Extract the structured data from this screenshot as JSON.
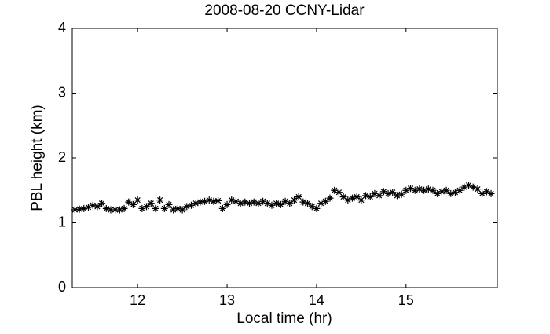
{
  "chart_data": {
    "type": "scatter",
    "title": "2008-08-20 CCNY-Lidar",
    "x_label": "Local time (hr)",
    "y_label": "PBL height (km)",
    "color": "#000000",
    "marker": "asterisk",
    "x": [
      11.3,
      11.35,
      11.4,
      11.45,
      11.5,
      11.55,
      11.6,
      11.65,
      11.7,
      11.75,
      11.8,
      11.85,
      11.9,
      11.95,
      12.0,
      12.05,
      12.1,
      12.15,
      12.2,
      12.25,
      12.3,
      12.35,
      12.4,
      12.45,
      12.5,
      12.55,
      12.6,
      12.65,
      12.7,
      12.75,
      12.8,
      12.85,
      12.9,
      12.95,
      13.0,
      13.05,
      13.1,
      13.15,
      13.2,
      13.25,
      13.3,
      13.35,
      13.4,
      13.45,
      13.5,
      13.55,
      13.6,
      13.65,
      13.7,
      13.75,
      13.8,
      13.85,
      13.9,
      13.95,
      14.0,
      14.05,
      14.1,
      14.15,
      14.2,
      14.25,
      14.3,
      14.35,
      14.4,
      14.45,
      14.5,
      14.55,
      14.6,
      14.65,
      14.7,
      14.75,
      14.8,
      14.85,
      14.9,
      14.95,
      15.0,
      15.05,
      15.1,
      15.15,
      15.2,
      15.25,
      15.3,
      15.35,
      15.4,
      15.45,
      15.5,
      15.55,
      15.6,
      15.65,
      15.7,
      15.75,
      15.8,
      15.85,
      15.9,
      15.95
    ],
    "values": [
      1.2,
      1.21,
      1.22,
      1.24,
      1.27,
      1.25,
      1.3,
      1.22,
      1.2,
      1.2,
      1.2,
      1.22,
      1.32,
      1.28,
      1.35,
      1.22,
      1.25,
      1.3,
      1.22,
      1.35,
      1.22,
      1.28,
      1.2,
      1.22,
      1.2,
      1.25,
      1.27,
      1.3,
      1.32,
      1.33,
      1.35,
      1.33,
      1.34,
      1.22,
      1.28,
      1.35,
      1.33,
      1.3,
      1.32,
      1.3,
      1.32,
      1.3,
      1.33,
      1.3,
      1.27,
      1.3,
      1.28,
      1.33,
      1.3,
      1.35,
      1.4,
      1.32,
      1.3,
      1.25,
      1.22,
      1.3,
      1.33,
      1.38,
      1.5,
      1.47,
      1.4,
      1.35,
      1.38,
      1.4,
      1.35,
      1.42,
      1.4,
      1.45,
      1.42,
      1.48,
      1.45,
      1.47,
      1.42,
      1.44,
      1.5,
      1.53,
      1.5,
      1.52,
      1.5,
      1.52,
      1.5,
      1.45,
      1.48,
      1.5,
      1.45,
      1.47,
      1.5,
      1.55,
      1.58,
      1.55,
      1.52,
      1.45,
      1.48,
      1.45
    ],
    "xlim": [
      11.27,
      16.02
    ],
    "ylim": [
      0,
      4
    ],
    "xticks": [
      12,
      13,
      14,
      15
    ],
    "yticks": [
      0,
      1,
      2,
      3,
      4
    ]
  }
}
